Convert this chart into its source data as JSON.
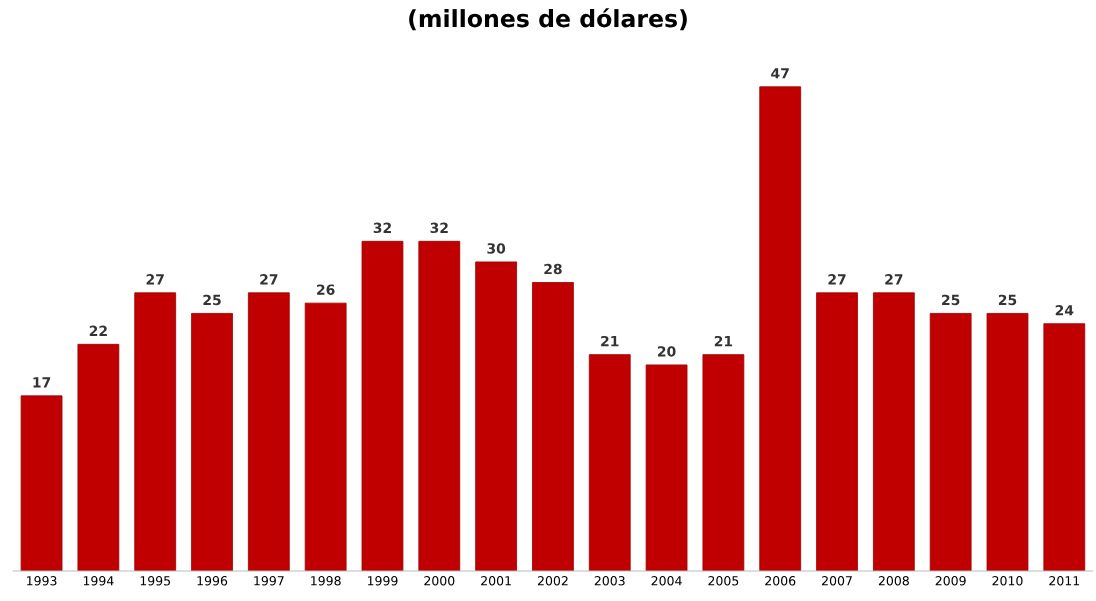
{
  "chart_data": {
    "type": "bar",
    "title": "(millones de dólares)",
    "categories": [
      "1993",
      "1994",
      "1995",
      "1996",
      "1997",
      "1998",
      "1999",
      "2000",
      "2001",
      "2002",
      "2003",
      "2004",
      "2005",
      "2006",
      "2007",
      "2008",
      "2009",
      "2010",
      "2011"
    ],
    "values": [
      17,
      22,
      27,
      25,
      27,
      26,
      32,
      32,
      30,
      28,
      21,
      20,
      21,
      47,
      27,
      27,
      25,
      25,
      24
    ],
    "color": "#c00000",
    "data_labels": true,
    "grid": false,
    "tick_labels": "x"
  }
}
